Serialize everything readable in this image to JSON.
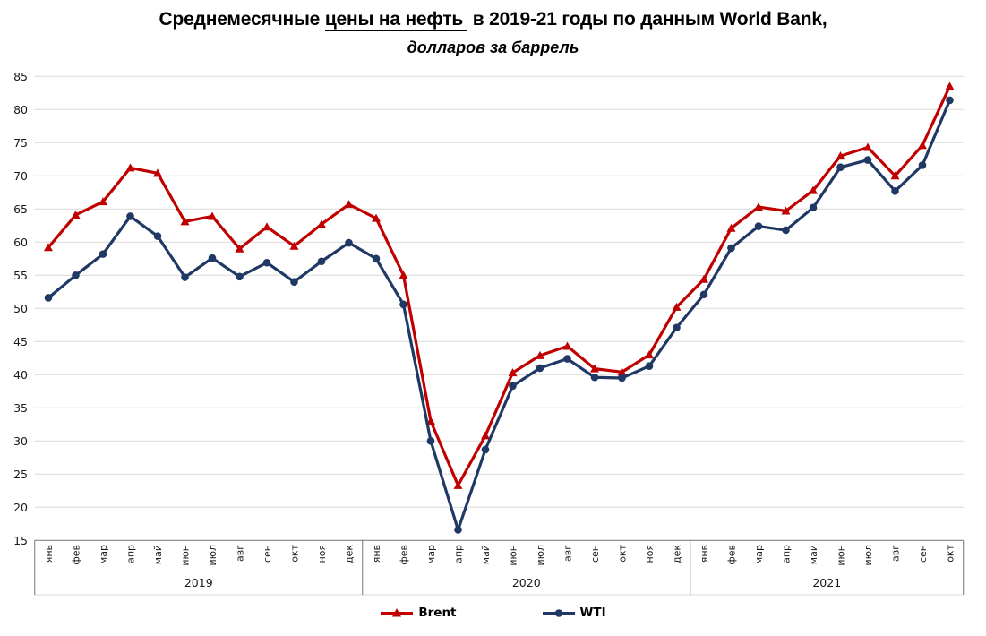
{
  "title": {
    "part1": "Среднемесячные ",
    "underlined": "цены на нефть",
    "part2": " в 2019-21 годы по данным World Bank,",
    "subtitle": "долларов за баррель"
  },
  "chart_data": {
    "type": "line",
    "title": "Среднемесячные цены на нефть в 2019-21 годы по данным World Bank,",
    "subtitle": "долларов за баррель",
    "xlabel": "",
    "ylabel": "",
    "ylim": [
      15,
      85
    ],
    "y_ticks": [
      15,
      20,
      25,
      30,
      35,
      40,
      45,
      50,
      55,
      60,
      65,
      70,
      75,
      80,
      85
    ],
    "grid": true,
    "legend_position": "bottom",
    "categories": [
      "янв",
      "фев",
      "мар",
      "апр",
      "май",
      "июн",
      "июл",
      "авг",
      "сен",
      "окт",
      "ноя",
      "дек",
      "янв",
      "фев",
      "мар",
      "апр",
      "май",
      "июн",
      "июл",
      "авг",
      "сен",
      "окт",
      "ноя",
      "дек",
      "янв",
      "фев",
      "мар",
      "апр",
      "май",
      "июн",
      "июл",
      "авг",
      "сен",
      "окт"
    ],
    "year_groups": [
      {
        "label": "2019",
        "months": 12
      },
      {
        "label": "2020",
        "months": 12
      },
      {
        "label": "2021",
        "months": 10
      }
    ],
    "series": [
      {
        "name": "Brent",
        "color": "#C00000",
        "marker": "triangle",
        "values": [
          59.2,
          64.1,
          66.1,
          71.2,
          70.4,
          63.1,
          63.9,
          59.0,
          62.3,
          59.4,
          62.7,
          65.7,
          63.6,
          55.0,
          33.0,
          23.3,
          30.8,
          40.3,
          42.9,
          44.3,
          40.9,
          40.4,
          43.0,
          50.2,
          54.4,
          62.1,
          65.3,
          64.7,
          67.8,
          73.0,
          74.3,
          70.0,
          74.6,
          83.5
        ]
      },
      {
        "name": "WTI",
        "color": "#1F3864",
        "marker": "circle",
        "values": [
          51.6,
          55.0,
          58.2,
          63.9,
          60.9,
          54.7,
          57.6,
          54.8,
          56.9,
          54.0,
          57.1,
          59.9,
          57.5,
          50.6,
          30.0,
          16.6,
          28.7,
          38.3,
          41.0,
          42.4,
          39.6,
          39.5,
          41.3,
          47.1,
          52.1,
          59.1,
          62.4,
          61.8,
          65.2,
          71.3,
          72.4,
          67.7,
          71.6,
          81.4
        ]
      }
    ],
    "colors": {
      "grid": "#D9D9D9",
      "axis": "#737373",
      "band_bottom": "#D9D9D9",
      "text": "#1a1a1a"
    }
  }
}
